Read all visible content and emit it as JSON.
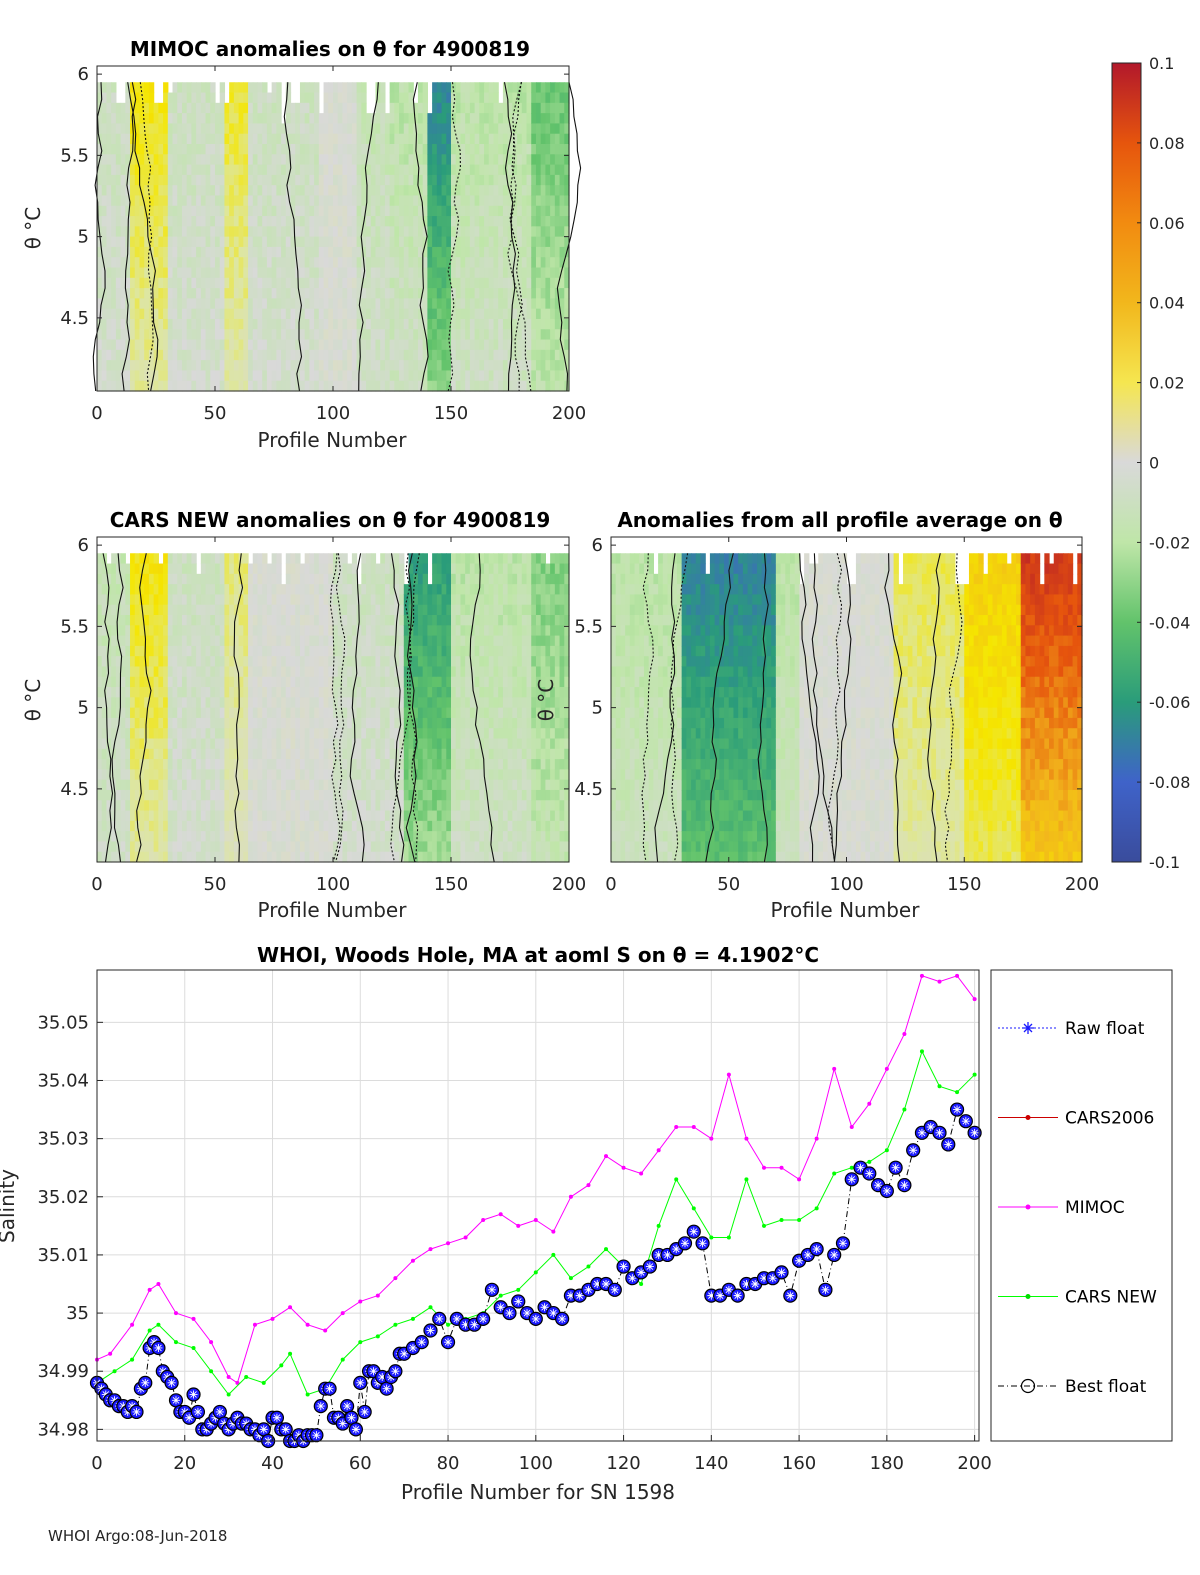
{
  "colorbar": {
    "ticks": [
      "0.1",
      "0.08",
      "0.06",
      "0.04",
      "0.02",
      "0",
      "-0.02",
      "-0.04",
      "-0.06",
      "-0.08",
      "-0.1"
    ],
    "colors": [
      "#b2182b",
      "#e6550d",
      "#f2b71c",
      "#f5e600",
      "#dde6a0",
      "#d9d9d9",
      "#bfe6a8",
      "#62c36b",
      "#2a9c7a",
      "#3f63c9",
      "#3a4c9c"
    ]
  },
  "chart_data": [
    {
      "type": "heatmap",
      "title": "MIMOC anomalies on θ  for 4900819",
      "xlabel": "Profile Number",
      "ylabel": "θ °C",
      "xlim": [
        0,
        200
      ],
      "ylim": [
        4.05,
        6.05
      ],
      "xticks": [
        "0",
        "50",
        "100",
        "150",
        "200"
      ],
      "yticks": [
        "4.5",
        "5",
        "5.5",
        "6"
      ],
      "data_xmax": 200,
      "bands": [
        {
          "x0": 0,
          "x1": 15,
          "value": -0.01
        },
        {
          "x0": 15,
          "x1": 30,
          "value": 0.04
        },
        {
          "x0": 30,
          "x1": 55,
          "value": -0.01
        },
        {
          "x0": 55,
          "x1": 65,
          "value": 0.035
        },
        {
          "x0": 65,
          "x1": 95,
          "value": -0.01
        },
        {
          "x0": 95,
          "x1": 110,
          "value": 0.0
        },
        {
          "x0": 110,
          "x1": 125,
          "value": -0.015
        },
        {
          "x0": 125,
          "x1": 140,
          "value": -0.02
        },
        {
          "x0": 140,
          "x1": 150,
          "value": -0.07
        },
        {
          "x0": 150,
          "x1": 185,
          "value": -0.02
        },
        {
          "x0": 185,
          "x1": 200,
          "value": -0.04
        }
      ]
    },
    {
      "type": "heatmap",
      "title": "CARS NEW anomalies on θ for 4900819",
      "xlabel": "Profile Number",
      "ylabel": "θ °C",
      "xlim": [
        0,
        200
      ],
      "ylim": [
        4.05,
        6.05
      ],
      "xticks": [
        "0",
        "50",
        "100",
        "150",
        "200"
      ],
      "yticks": [
        "4.5",
        "5",
        "5.5",
        "6"
      ],
      "data_xmax": 200,
      "bands": [
        {
          "x0": 0,
          "x1": 15,
          "value": -0.015
        },
        {
          "x0": 15,
          "x1": 30,
          "value": 0.04
        },
        {
          "x0": 30,
          "x1": 55,
          "value": -0.01
        },
        {
          "x0": 55,
          "x1": 65,
          "value": 0.025
        },
        {
          "x0": 65,
          "x1": 100,
          "value": 0.0
        },
        {
          "x0": 100,
          "x1": 130,
          "value": -0.01
        },
        {
          "x0": 130,
          "x1": 150,
          "value": -0.06
        },
        {
          "x0": 150,
          "x1": 185,
          "value": -0.02
        },
        {
          "x0": 185,
          "x1": 200,
          "value": -0.035
        }
      ]
    },
    {
      "type": "heatmap",
      "title": "Anomalies from all profile average on θ",
      "xlabel": "Profile Number",
      "ylabel": "θ °C",
      "xlim": [
        0,
        200
      ],
      "ylim": [
        4.05,
        6.05
      ],
      "xticks": [
        "0",
        "50",
        "100",
        "150",
        "200"
      ],
      "yticks": [
        "4.5",
        "5",
        "5.5",
        "6"
      ],
      "data_xmax": 200,
      "bands": [
        {
          "x0": 0,
          "x1": 30,
          "value": -0.02
        },
        {
          "x0": 30,
          "x1": 70,
          "value": -0.07
        },
        {
          "x0": 70,
          "x1": 80,
          "value": -0.02
        },
        {
          "x0": 80,
          "x1": 120,
          "value": 0.0
        },
        {
          "x0": 120,
          "x1": 150,
          "value": 0.03
        },
        {
          "x0": 150,
          "x1": 175,
          "value": 0.05
        },
        {
          "x0": 175,
          "x1": 200,
          "value": 0.09
        }
      ]
    },
    {
      "type": "line",
      "title": "WHOI, Woods Hole, MA at aoml S on θ = 4.1902°C",
      "xlabel": "Profile Number for SN 1598",
      "ylabel": "Salinity",
      "xlim": [
        0,
        201
      ],
      "ylim": [
        34.978,
        35.059
      ],
      "xticks": [
        0,
        20,
        40,
        60,
        80,
        100,
        120,
        140,
        160,
        180,
        200
      ],
      "yticks": [
        34.98,
        34.99,
        35.0,
        35.01,
        35.02,
        35.03,
        35.04,
        35.05
      ],
      "ytick_labels": [
        "34.98",
        "34.99",
        "35",
        "35.01",
        "35.02",
        "35.03",
        "35.04",
        "35.05"
      ],
      "legend": [
        "Raw float",
        "CARS2006",
        "MIMOC",
        "CARS NEW",
        "Best float"
      ],
      "series": [
        {
          "name": "MIMOC",
          "color": "#ff00ff",
          "x": [
            0,
            3,
            8,
            12,
            14,
            18,
            22,
            26,
            30,
            32,
            36,
            40,
            44,
            48,
            52,
            56,
            60,
            64,
            68,
            72,
            76,
            80,
            84,
            88,
            92,
            96,
            100,
            104,
            108,
            112,
            116,
            120,
            124,
            128,
            132,
            136,
            140,
            144,
            148,
            152,
            156,
            160,
            164,
            168,
            172,
            176,
            180,
            184,
            188,
            192,
            196,
            200
          ],
          "values": [
            34.992,
            34.993,
            34.998,
            35.004,
            35.005,
            35.0,
            34.999,
            34.995,
            34.989,
            34.988,
            34.998,
            34.999,
            35.001,
            34.998,
            34.997,
            35.0,
            35.002,
            35.003,
            35.006,
            35.009,
            35.011,
            35.012,
            35.013,
            35.016,
            35.017,
            35.015,
            35.016,
            35.014,
            35.02,
            35.022,
            35.027,
            35.025,
            35.024,
            35.028,
            35.032,
            35.032,
            35.03,
            35.041,
            35.03,
            35.025,
            35.025,
            35.023,
            35.03,
            35.042,
            35.032,
            35.036,
            35.042,
            35.048,
            35.058,
            35.057,
            35.058,
            35.054
          ]
        },
        {
          "name": "CARS NEW",
          "color": "#00ff00",
          "x": [
            0,
            4,
            8,
            12,
            14,
            18,
            22,
            26,
            30,
            34,
            38,
            42,
            44,
            48,
            52,
            56,
            60,
            64,
            68,
            72,
            76,
            80,
            84,
            88,
            92,
            96,
            100,
            104,
            108,
            112,
            116,
            120,
            124,
            128,
            132,
            136,
            140,
            144,
            148,
            152,
            156,
            160,
            164,
            168,
            172,
            176,
            180,
            184,
            188,
            192,
            196,
            200
          ],
          "values": [
            34.988,
            34.99,
            34.992,
            34.997,
            34.998,
            34.995,
            34.994,
            34.99,
            34.986,
            34.989,
            34.988,
            34.991,
            34.993,
            34.986,
            34.987,
            34.992,
            34.995,
            34.996,
            34.998,
            34.999,
            35.001,
            34.998,
            34.999,
            35.0,
            35.003,
            35.004,
            35.007,
            35.01,
            35.006,
            35.008,
            35.011,
            35.008,
            35.005,
            35.015,
            35.023,
            35.018,
            35.013,
            35.013,
            35.023,
            35.015,
            35.016,
            35.016,
            35.018,
            35.024,
            35.025,
            35.026,
            35.028,
            35.035,
            35.045,
            35.039,
            35.038,
            35.041
          ]
        },
        {
          "name": "Best float",
          "color": "#000000",
          "marker_color": "#1a1aff",
          "x": [
            0,
            1,
            2,
            3,
            4,
            5,
            6,
            7,
            8,
            9,
            10,
            11,
            12,
            13,
            14,
            15,
            16,
            17,
            18,
            19,
            20,
            21,
            22,
            23,
            24,
            25,
            26,
            27,
            28,
            29,
            30,
            31,
            32,
            33,
            34,
            35,
            36,
            37,
            38,
            39,
            40,
            41,
            42,
            43,
            44,
            45,
            46,
            47,
            48,
            49,
            50,
            51,
            52,
            53,
            54,
            55,
            56,
            57,
            58,
            59,
            60,
            61,
            62,
            63,
            64,
            65,
            66,
            67,
            68,
            69,
            70,
            72,
            74,
            76,
            78,
            80,
            82,
            84,
            86,
            88,
            90,
            92,
            94,
            96,
            98,
            100,
            102,
            104,
            106,
            108,
            110,
            112,
            114,
            116,
            118,
            120,
            122,
            124,
            126,
            128,
            130,
            132,
            134,
            136,
            138,
            140,
            142,
            144,
            146,
            148,
            150,
            152,
            154,
            156,
            158,
            160,
            162,
            164,
            166,
            168,
            170,
            172,
            174,
            176,
            178,
            180,
            182,
            184,
            186,
            188,
            190,
            192,
            194,
            196,
            198,
            200
          ],
          "values": [
            34.988,
            34.987,
            34.986,
            34.985,
            34.985,
            34.984,
            34.984,
            34.983,
            34.984,
            34.983,
            34.987,
            34.988,
            34.994,
            34.995,
            34.994,
            34.99,
            34.989,
            34.988,
            34.985,
            34.983,
            34.983,
            34.982,
            34.986,
            34.983,
            34.98,
            34.98,
            34.981,
            34.982,
            34.983,
            34.981,
            34.98,
            34.981,
            34.982,
            34.981,
            34.981,
            34.98,
            34.98,
            34.979,
            34.98,
            34.978,
            34.982,
            34.982,
            34.98,
            34.98,
            34.978,
            34.978,
            34.979,
            34.978,
            34.979,
            34.979,
            34.979,
            34.984,
            34.987,
            34.987,
            34.982,
            34.982,
            34.981,
            34.984,
            34.982,
            34.98,
            34.988,
            34.983,
            34.99,
            34.99,
            34.988,
            34.989,
            34.987,
            34.989,
            34.99,
            34.993,
            34.993,
            34.994,
            34.995,
            34.997,
            34.999,
            34.995,
            34.999,
            34.998,
            34.998,
            34.999,
            35.004,
            35.001,
            35.0,
            35.002,
            35.0,
            34.999,
            35.001,
            35.0,
            34.999,
            35.003,
            35.003,
            35.004,
            35.005,
            35.005,
            35.004,
            35.008,
            35.006,
            35.007,
            35.008,
            35.01,
            35.01,
            35.011,
            35.012,
            35.014,
            35.012,
            35.003,
            35.003,
            35.004,
            35.003,
            35.005,
            35.005,
            35.006,
            35.006,
            35.007,
            35.003,
            35.009,
            35.01,
            35.011,
            35.004,
            35.01,
            35.012,
            35.023,
            35.025,
            35.024,
            35.022,
            35.021,
            35.025,
            35.022,
            35.028,
            35.031,
            35.032,
            35.031,
            35.029,
            35.035,
            35.033,
            35.031
          ]
        }
      ]
    }
  ],
  "footer": "WHOI Argo:08-Jun-2018"
}
